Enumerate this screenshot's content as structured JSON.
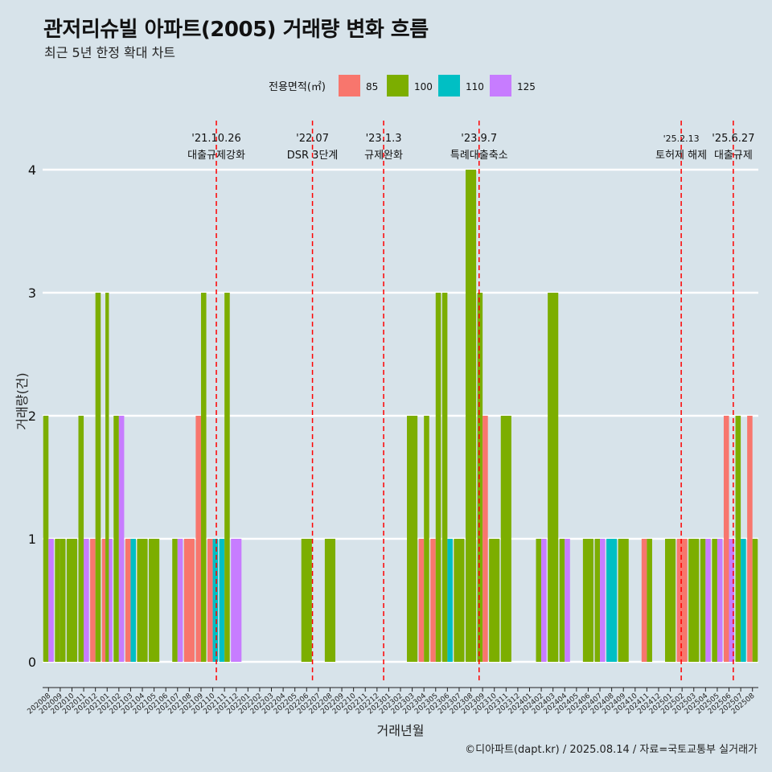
{
  "title": "관저리슈빌 아파트(2005) 거래량 변화 흐름",
  "subtitle": "최근 5년 한정 확대 차트",
  "caption": "©디아파트(dapt.kr) / 2025.08.14 / 자료=국토교통부 실거래가",
  "colors": {
    "background": "#d7e3ea",
    "85": "#f8766d",
    "100": "#7cae00",
    "110": "#00bfc4",
    "125": "#c77cff",
    "event_line": "#ff0000"
  },
  "chart_data": {
    "type": "bar",
    "stacked": false,
    "position": "dodge",
    "title": "관저리슈빌 아파트(2005) 거래량 변화 흐름",
    "subtitle": "최근 5년 한정 확대 차트",
    "xlabel": "거래년월",
    "ylabel": "거래량(건)",
    "ylim": [
      -0.15,
      4.4
    ],
    "yticks": [
      0,
      1,
      2,
      3,
      4
    ],
    "grid": true,
    "legend": {
      "title": "전용면적(㎡)",
      "position": "top",
      "entries": [
        "85",
        "100",
        "110",
        "125"
      ]
    },
    "categories": [
      "202008",
      "202009",
      "202010",
      "202011",
      "202012",
      "202101",
      "202102",
      "202103",
      "202104",
      "202105",
      "202106",
      "202107",
      "202108",
      "202109",
      "202110",
      "202111",
      "202112",
      "202201",
      "202202",
      "202203",
      "202204",
      "202205",
      "202206",
      "202207",
      "202208",
      "202209",
      "202210",
      "202211",
      "202212",
      "202301",
      "202302",
      "202303",
      "202304",
      "202305",
      "202306",
      "202307",
      "202308",
      "202309",
      "202310",
      "202311",
      "202312",
      "202401",
      "202402",
      "202403",
      "202404",
      "202405",
      "202406",
      "202407",
      "202408",
      "202409",
      "202410",
      "202411",
      "202412",
      "202501",
      "202502",
      "202503",
      "202504",
      "202505",
      "202506",
      "202507",
      "202508"
    ],
    "bars": [
      {
        "month": "202008",
        "groups": [
          {
            "size": "100",
            "value": 2
          },
          {
            "size": "125",
            "value": 1
          }
        ]
      },
      {
        "month": "202009",
        "groups": [
          {
            "size": "100",
            "value": 1
          },
          {
            "size": "100",
            "value": 1
          }
        ]
      },
      {
        "month": "202010",
        "groups": [
          {
            "size": "100",
            "value": 1
          }
        ]
      },
      {
        "month": "202011",
        "groups": [
          {
            "size": "100",
            "value": 2
          },
          {
            "size": "125",
            "value": 1
          }
        ]
      },
      {
        "month": "202012",
        "groups": [
          {
            "size": "85",
            "value": 1
          },
          {
            "size": "100",
            "value": 3
          }
        ]
      },
      {
        "month": "202101",
        "groups": [
          {
            "size": "85",
            "value": 1
          },
          {
            "size": "100",
            "value": 3
          },
          {
            "size": "125",
            "value": 1
          }
        ]
      },
      {
        "month": "202102",
        "groups": [
          {
            "size": "100",
            "value": 2
          },
          {
            "size": "125",
            "value": 2
          }
        ]
      },
      {
        "month": "202103",
        "groups": [
          {
            "size": "85",
            "value": 1
          },
          {
            "size": "110",
            "value": 1
          }
        ]
      },
      {
        "month": "202104",
        "groups": [
          {
            "size": "100",
            "value": 1
          }
        ]
      },
      {
        "month": "202105",
        "groups": [
          {
            "size": "100",
            "value": 1
          }
        ]
      },
      {
        "month": "202106",
        "groups": []
      },
      {
        "month": "202107",
        "groups": [
          {
            "size": "100",
            "value": 1
          },
          {
            "size": "125",
            "value": 1
          }
        ]
      },
      {
        "month": "202108",
        "groups": [
          {
            "size": "85",
            "value": 1
          }
        ]
      },
      {
        "month": "202109",
        "groups": [
          {
            "size": "85",
            "value": 2
          },
          {
            "size": "100",
            "value": 3
          }
        ]
      },
      {
        "month": "202110",
        "groups": [
          {
            "size": "85",
            "value": 1
          },
          {
            "size": "110",
            "value": 1
          }
        ]
      },
      {
        "month": "202111",
        "groups": [
          {
            "size": "110",
            "value": 1
          },
          {
            "size": "100",
            "value": 3
          }
        ]
      },
      {
        "month": "202112",
        "groups": [
          {
            "size": "125",
            "value": 1
          }
        ]
      },
      {
        "month": "202201",
        "groups": []
      },
      {
        "month": "202202",
        "groups": []
      },
      {
        "month": "202203",
        "groups": []
      },
      {
        "month": "202204",
        "groups": []
      },
      {
        "month": "202205",
        "groups": []
      },
      {
        "month": "202206",
        "groups": [
          {
            "size": "100",
            "value": 1
          }
        ]
      },
      {
        "month": "202207",
        "groups": []
      },
      {
        "month": "202208",
        "groups": [
          {
            "size": "100",
            "value": 1
          }
        ]
      },
      {
        "month": "202209",
        "groups": []
      },
      {
        "month": "202210",
        "groups": []
      },
      {
        "month": "202211",
        "groups": []
      },
      {
        "month": "202212",
        "groups": []
      },
      {
        "month": "202301",
        "groups": []
      },
      {
        "month": "202302",
        "groups": []
      },
      {
        "month": "202303",
        "groups": [
          {
            "size": "100",
            "value": 2
          }
        ]
      },
      {
        "month": "202304",
        "groups": [
          {
            "size": "85",
            "value": 1
          },
          {
            "size": "100",
            "value": 2
          }
        ]
      },
      {
        "month": "202305",
        "groups": [
          {
            "size": "85",
            "value": 1
          },
          {
            "size": "100",
            "value": 3
          }
        ]
      },
      {
        "month": "202306",
        "groups": [
          {
            "size": "100",
            "value": 3
          },
          {
            "size": "110",
            "value": 1
          }
        ]
      },
      {
        "month": "202307",
        "groups": [
          {
            "size": "100",
            "value": 1
          }
        ]
      },
      {
        "month": "202308",
        "groups": [
          {
            "size": "100",
            "value": 4
          }
        ]
      },
      {
        "month": "202309",
        "groups": [
          {
            "size": "100",
            "value": 3
          },
          {
            "size": "85",
            "value": 2
          }
        ]
      },
      {
        "month": "202310",
        "groups": [
          {
            "size": "100",
            "value": 1
          }
        ]
      },
      {
        "month": "202311",
        "groups": [
          {
            "size": "100",
            "value": 2
          }
        ]
      },
      {
        "month": "202312",
        "groups": []
      },
      {
        "month": "202401",
        "groups": []
      },
      {
        "month": "202402",
        "groups": [
          {
            "size": "100",
            "value": 1
          },
          {
            "size": "125",
            "value": 1
          }
        ]
      },
      {
        "month": "202403",
        "groups": [
          {
            "size": "100",
            "value": 3
          }
        ]
      },
      {
        "month": "202404",
        "groups": [
          {
            "size": "100",
            "value": 1
          },
          {
            "size": "125",
            "value": 1
          }
        ]
      },
      {
        "month": "202405",
        "groups": []
      },
      {
        "month": "202406",
        "groups": [
          {
            "size": "100",
            "value": 1
          }
        ]
      },
      {
        "month": "202407",
        "groups": [
          {
            "size": "100",
            "value": 1
          },
          {
            "size": "125",
            "value": 1
          }
        ]
      },
      {
        "month": "202408",
        "groups": [
          {
            "size": "110",
            "value": 1
          }
        ]
      },
      {
        "month": "202409",
        "groups": [
          {
            "size": "100",
            "value": 1
          }
        ]
      },
      {
        "month": "202410",
        "groups": []
      },
      {
        "month": "202411",
        "groups": [
          {
            "size": "85",
            "value": 1
          },
          {
            "size": "100",
            "value": 1
          }
        ]
      },
      {
        "month": "202412",
        "groups": []
      },
      {
        "month": "202501",
        "groups": [
          {
            "size": "100",
            "value": 1
          }
        ]
      },
      {
        "month": "202502",
        "groups": [
          {
            "size": "85",
            "value": 1
          }
        ]
      },
      {
        "month": "202503",
        "groups": [
          {
            "size": "100",
            "value": 1
          }
        ]
      },
      {
        "month": "202504",
        "groups": [
          {
            "size": "100",
            "value": 1
          },
          {
            "size": "125",
            "value": 1
          }
        ]
      },
      {
        "month": "202505",
        "groups": [
          {
            "size": "100",
            "value": 1
          },
          {
            "size": "125",
            "value": 1
          }
        ]
      },
      {
        "month": "202506",
        "groups": [
          {
            "size": "85",
            "value": 2
          },
          {
            "size": "125",
            "value": 1
          }
        ]
      },
      {
        "month": "202507",
        "groups": [
          {
            "size": "100",
            "value": 2
          },
          {
            "size": "110",
            "value": 1
          }
        ]
      },
      {
        "month": "202508",
        "groups": [
          {
            "size": "85",
            "value": 2
          },
          {
            "size": "100",
            "value": 1
          }
        ]
      }
    ],
    "events": [
      {
        "date": "2021-10-26",
        "label1": "'21.10.26",
        "label2": "대출규제강화"
      },
      {
        "date": "2022-07-01",
        "label1": "'22.07",
        "label2": "DSR 3단계"
      },
      {
        "date": "2023-01-03",
        "label1": "'23.1.3",
        "label2": "규제완화"
      },
      {
        "date": "2023-09-07",
        "label1": "'23.9.7",
        "label2": "특례대출축소"
      },
      {
        "date": "2025-02-13",
        "label1": "'25.2.13",
        "label2": "토허제 해제"
      },
      {
        "date": "2025-06-27",
        "label1": "'25.6.27",
        "label2": "대출규제"
      }
    ]
  }
}
